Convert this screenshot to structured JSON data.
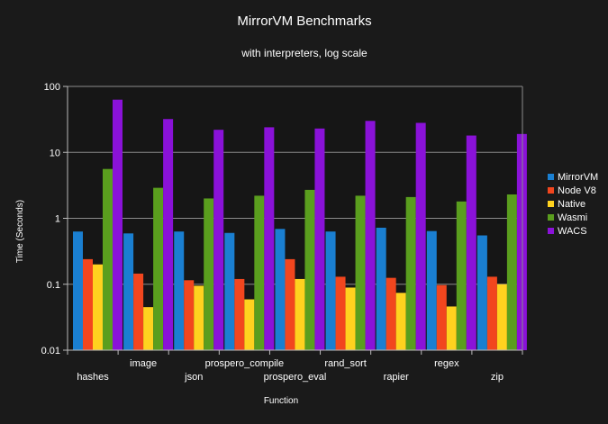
{
  "chart_data": {
    "type": "bar",
    "title": "MirrorVM Benchmarks",
    "subtitle": "with interpreters, log scale",
    "xlabel": "Function",
    "ylabel": "Time (Seconds)",
    "yscale": "log",
    "ylim": [
      0.01,
      100
    ],
    "yticks": [
      "100",
      "10",
      "1",
      "0.1",
      "0.01"
    ],
    "grid": true,
    "legend_position": "right",
    "categories": [
      "hashes",
      "image",
      "json",
      "prospero_compile",
      "prospero_eval",
      "rand_sort",
      "rapier",
      "regex",
      "zip"
    ],
    "series": [
      {
        "name": "MirrorVM",
        "color": "#1a7fd1",
        "values": [
          0.63,
          0.59,
          0.63,
          0.6,
          0.69,
          0.63,
          0.72,
          0.64,
          0.55
        ]
      },
      {
        "name": "Node V8",
        "color": "#f2461e",
        "values": [
          0.24,
          0.145,
          0.115,
          0.12,
          0.24,
          0.13,
          0.125,
          0.097,
          0.13
        ]
      },
      {
        "name": "Native",
        "color": "#ffd21f",
        "values": [
          0.2,
          0.045,
          0.095,
          0.059,
          0.12,
          0.089,
          0.074,
          0.046,
          0.1
        ]
      },
      {
        "name": "Wasmi",
        "color": "#5a9e1e",
        "values": [
          5.6,
          2.9,
          2.0,
          2.2,
          2.7,
          2.2,
          2.1,
          1.8,
          2.3
        ]
      },
      {
        "name": "WACS",
        "color": "#8a12d8",
        "values": [
          63,
          32,
          22,
          24,
          23,
          30,
          28,
          18,
          19
        ]
      }
    ]
  }
}
